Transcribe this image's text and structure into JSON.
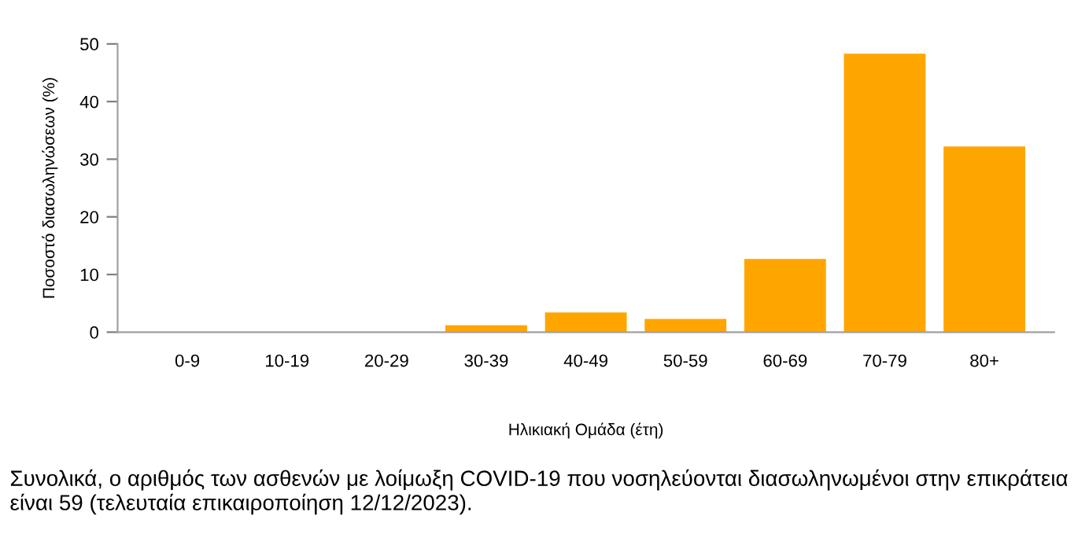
{
  "chart_data": {
    "type": "bar",
    "xlabel": "Ηλικιακή Ομάδα (έτη)",
    "ylabel": "Ποσοστό διασωληνώσεων (%)",
    "categories": [
      "0-9",
      "10-19",
      "20-29",
      "30-39",
      "40-49",
      "50-59",
      "60-69",
      "70-79",
      "80+"
    ],
    "values": [
      0,
      0,
      0,
      1.2,
      3.4,
      2.3,
      12.7,
      48.3,
      32.2
    ],
    "color": "#ffa500",
    "ylim": [
      0,
      50
    ],
    "yticks": [
      0,
      10,
      20,
      30,
      40,
      50
    ],
    "grid": false,
    "legend": false,
    "annotations": [
      "Συνολικά, ο αριθμός των ασθενών με λοίμωξη COVID-19 που νοσηλεύονται διασωληνωμένοι στην επικράτεια είναι 59 (τελευταία επικαιροποίηση 12/12/2023)."
    ]
  }
}
